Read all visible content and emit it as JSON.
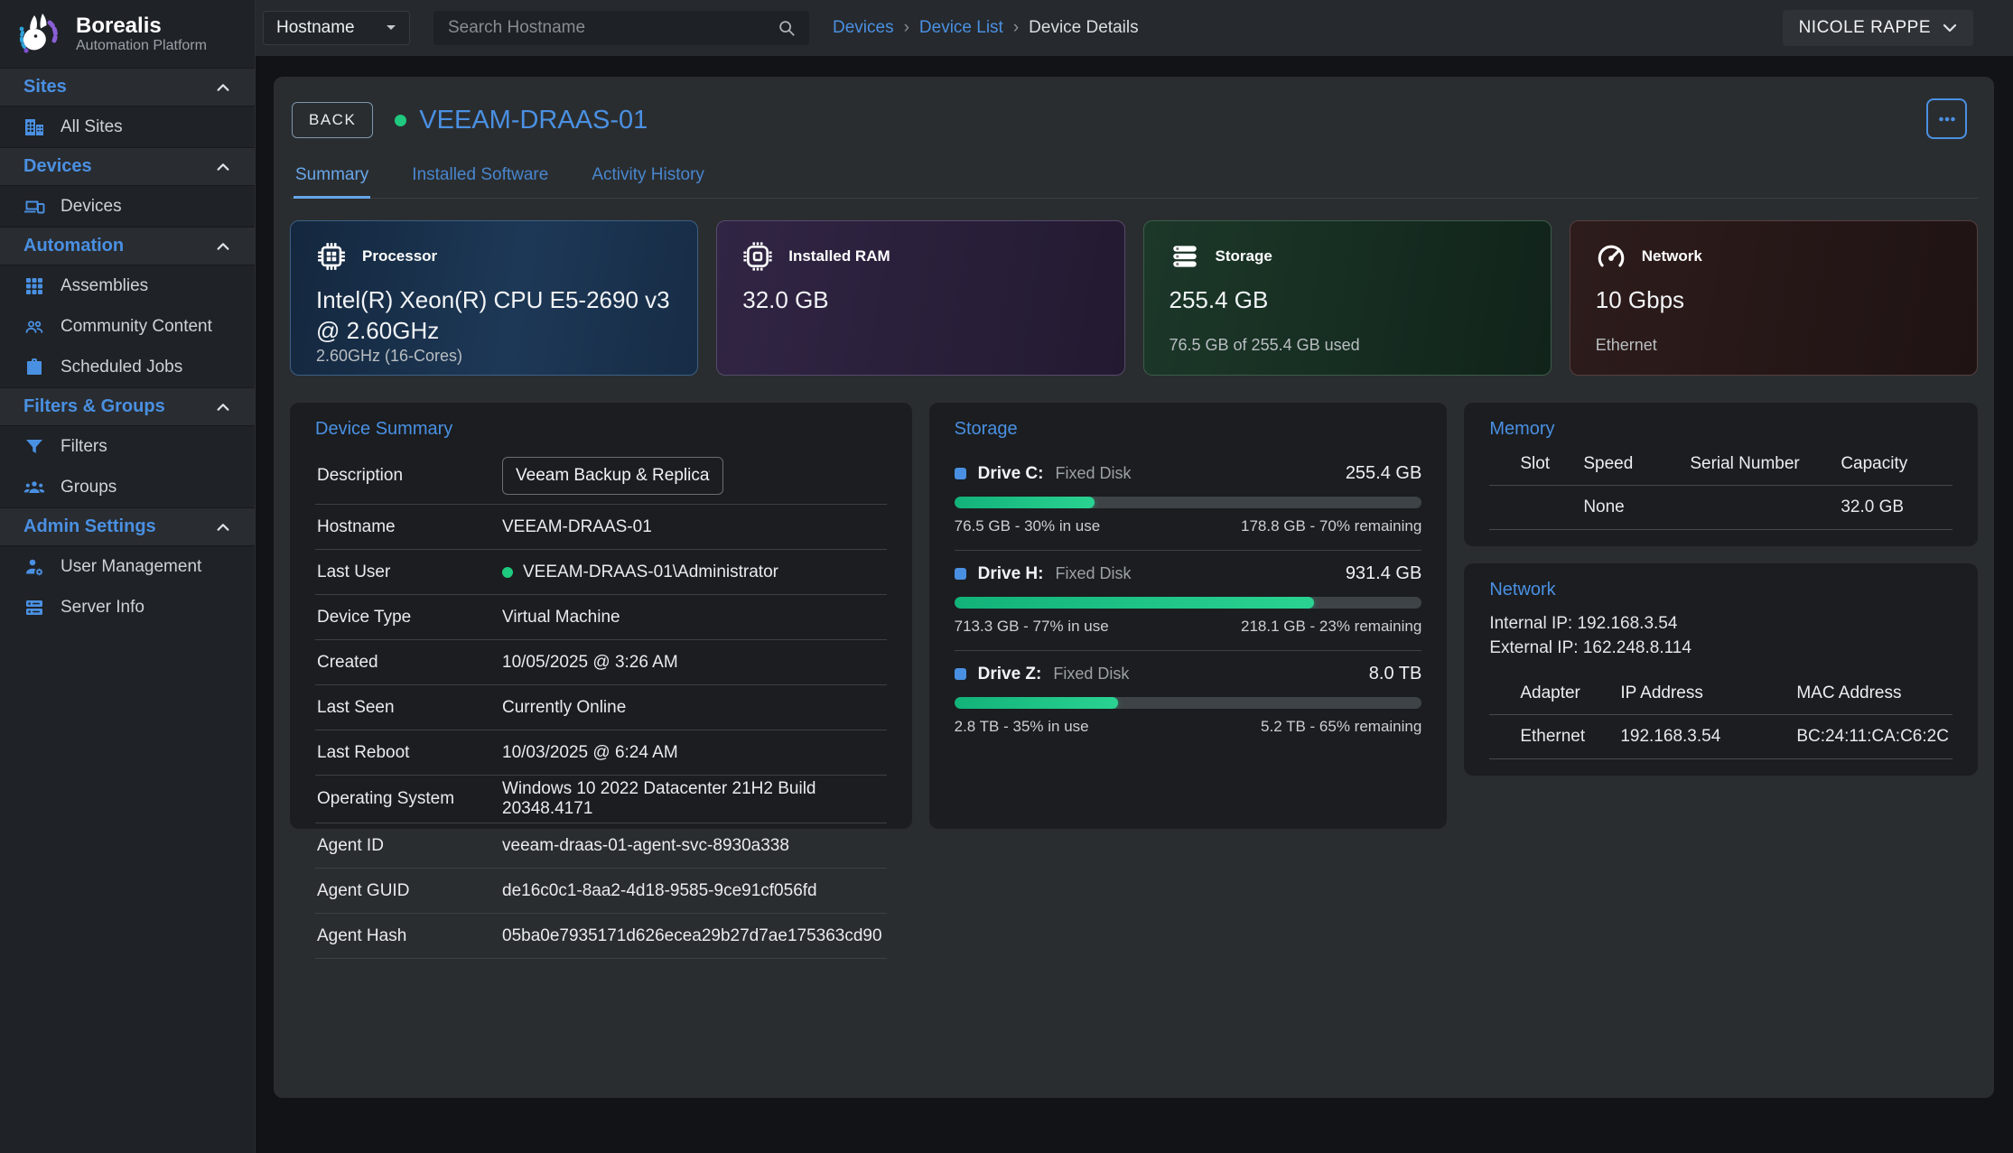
{
  "brand": {
    "name": "Borealis",
    "tagline": "Automation Platform"
  },
  "topbar": {
    "filter_value": "Hostname",
    "search_placeholder": "Search Hostname",
    "breadcrumb_separator": "›",
    "breadcrumbs": [
      {
        "label": "Devices"
      },
      {
        "label": "Device List"
      },
      {
        "label": "Device Details"
      }
    ],
    "user_menu": "NICOLE RAPPE"
  },
  "sidebar": {
    "sections": [
      {
        "label": "Sites",
        "items": [
          {
            "label": "All Sites",
            "icon": "building-icon"
          }
        ]
      },
      {
        "label": "Devices",
        "items": [
          {
            "label": "Devices",
            "icon": "devices-icon"
          }
        ]
      },
      {
        "label": "Automation",
        "items": [
          {
            "label": "Assemblies",
            "icon": "grid-icon"
          },
          {
            "label": "Community Content",
            "icon": "people-icon"
          },
          {
            "label": "Scheduled Jobs",
            "icon": "briefcase-icon"
          }
        ]
      },
      {
        "label": "Filters & Groups",
        "items": [
          {
            "label": "Filters",
            "icon": "filter-icon"
          },
          {
            "label": "Groups",
            "icon": "groups-icon"
          }
        ]
      },
      {
        "label": "Admin Settings",
        "items": [
          {
            "label": "User Management",
            "icon": "user-gear-icon"
          },
          {
            "label": "Server Info",
            "icon": "server-icon"
          }
        ]
      }
    ]
  },
  "page": {
    "back_label": "BACK",
    "device_title": "VEEAM-DRAAS-01",
    "status": "online",
    "tabs": [
      {
        "label": "Summary",
        "active": true
      },
      {
        "label": "Installed Software",
        "active": false
      },
      {
        "label": "Activity History",
        "active": false
      }
    ],
    "stat_cards": [
      {
        "icon": "cpu-icon",
        "label": "Processor",
        "value": "Intel(R) Xeon(R) CPU E5-2690 v3 @ 2.60GHz",
        "sub": "2.60GHz (16-Cores)",
        "theme": "blue"
      },
      {
        "icon": "ram-chip-icon",
        "label": "Installed RAM",
        "value": "32.0 GB",
        "sub": "",
        "theme": "purple"
      },
      {
        "icon": "disks-icon",
        "label": "Storage",
        "value": "255.4 GB",
        "sub": "76.5 GB of 255.4 GB used",
        "theme": "green"
      },
      {
        "icon": "gauge-icon",
        "label": "Network",
        "value": "10 Gbps",
        "sub": "Ethernet",
        "theme": "red"
      }
    ],
    "device_summary": {
      "title": "Device Summary",
      "description_label": "Description",
      "description_value": "Veeam Backup & Replication",
      "rows": [
        {
          "label": "Hostname",
          "value": "VEEAM-DRAAS-01"
        },
        {
          "label": "Last User",
          "value": "VEEAM-DRAAS-01\\Administrator",
          "online_dot": true
        },
        {
          "label": "Device Type",
          "value": "Virtual Machine"
        },
        {
          "label": "Created",
          "value": "10/05/2025 @ 3:26 AM"
        },
        {
          "label": "Last Seen",
          "value": "Currently Online"
        },
        {
          "label": "Last Reboot",
          "value": "10/03/2025 @ 6:24 AM"
        },
        {
          "label": "Operating System",
          "value": "Windows 10 2022 Datacenter 21H2 Build 20348.4171"
        },
        {
          "label": "Agent ID",
          "value": "veeam-draas-01-agent-svc-8930a338"
        },
        {
          "label": "Agent GUID",
          "value": "de16c0c1-8aa2-4d18-9585-9ce91cf056fd"
        },
        {
          "label": "Agent Hash",
          "value": "05ba0e7935171d626ecea29b27d7ae175363cd90"
        }
      ]
    },
    "storage_panel": {
      "title": "Storage",
      "drives": [
        {
          "name": "Drive C:",
          "type": "Fixed Disk",
          "size": "255.4 GB",
          "used_pct": 30,
          "used_text": "76.5 GB - 30% in use",
          "remaining_text": "178.8 GB - 70% remaining"
        },
        {
          "name": "Drive H:",
          "type": "Fixed Disk",
          "size": "931.4 GB",
          "used_pct": 77,
          "used_text": "713.3 GB - 77% in use",
          "remaining_text": "218.1 GB - 23% remaining"
        },
        {
          "name": "Drive Z:",
          "type": "Fixed Disk",
          "size": "8.0 TB",
          "used_pct": 35,
          "used_text": "2.8 TB - 35% in use",
          "remaining_text": "5.2 TB - 65% remaining"
        }
      ]
    },
    "memory_panel": {
      "title": "Memory",
      "columns": [
        "Slot",
        "Speed",
        "Serial Number",
        "Capacity"
      ],
      "rows": [
        [
          "",
          "None",
          "",
          "32.0 GB"
        ]
      ]
    },
    "network_panel": {
      "title": "Network",
      "internal_ip": "Internal IP: 192.168.3.54",
      "external_ip": "External IP: 162.248.8.114",
      "columns": [
        "Adapter",
        "IP Address",
        "MAC Address"
      ],
      "rows": [
        [
          "Ethernet",
          "192.168.3.54",
          "BC:24:11:CA:C6:2C"
        ]
      ]
    }
  },
  "colors": {
    "accent_blue": "#4a90e2",
    "online_green": "#1fc97f",
    "progress_green": "#1ec487",
    "card_processor": "#1d3856",
    "card_ram": "#312544",
    "card_storage": "#1c3829",
    "card_network": "#2e1c1c"
  }
}
